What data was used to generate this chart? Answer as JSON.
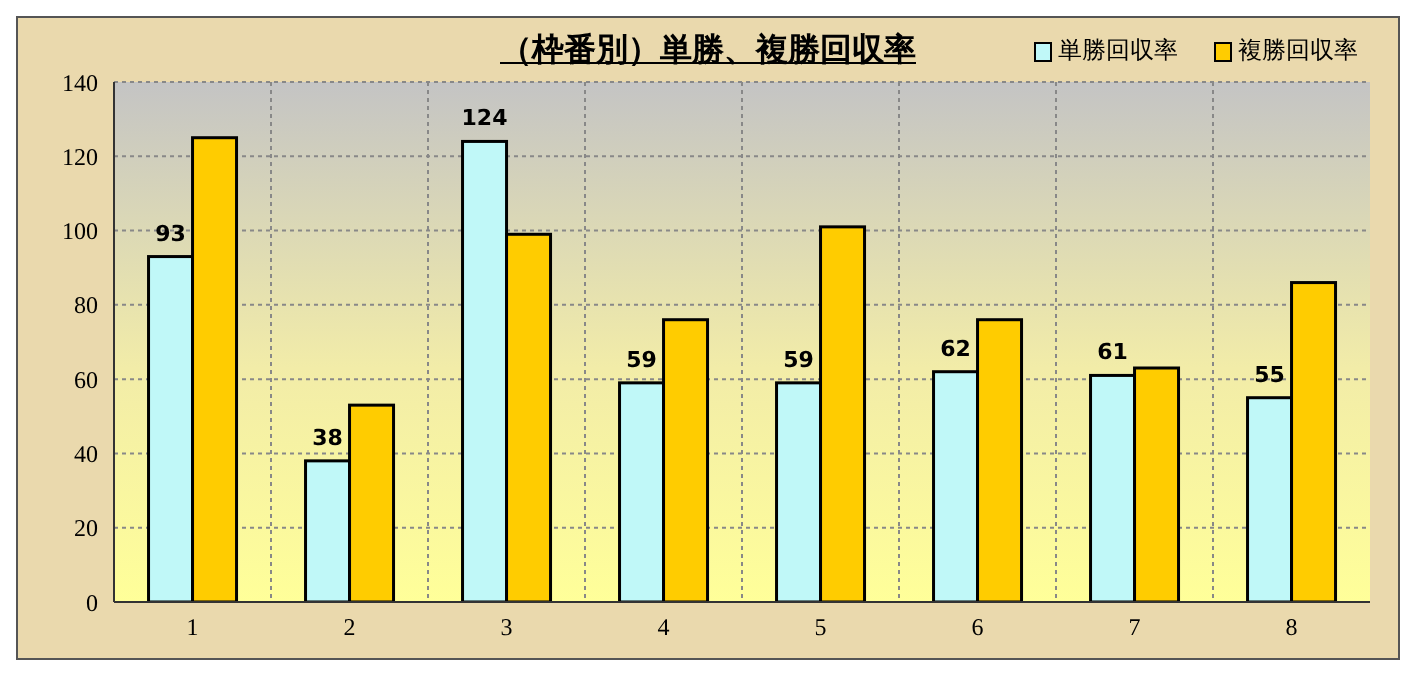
{
  "chart_data": {
    "type": "bar",
    "title": "（枠番別）単勝、複勝回収率",
    "categories": [
      "1",
      "2",
      "3",
      "4",
      "5",
      "6",
      "7",
      "8"
    ],
    "series": [
      {
        "name": "単勝回収率",
        "color": "#c0f8f8",
        "values": [
          93,
          38,
          124,
          59,
          59,
          62,
          61,
          55
        ],
        "value_labels": [
          "93",
          "38",
          "124",
          "59",
          "59",
          "62",
          "61",
          "55"
        ]
      },
      {
        "name": "複勝回収率",
        "color": "#ffcc00",
        "values": [
          125,
          53,
          99,
          76,
          101,
          76,
          63,
          86
        ]
      }
    ],
    "ylim": [
      0,
      140
    ],
    "yticks": [
      0,
      20,
      40,
      60,
      80,
      100,
      120,
      140
    ],
    "grid": true,
    "legend": "top right"
  }
}
